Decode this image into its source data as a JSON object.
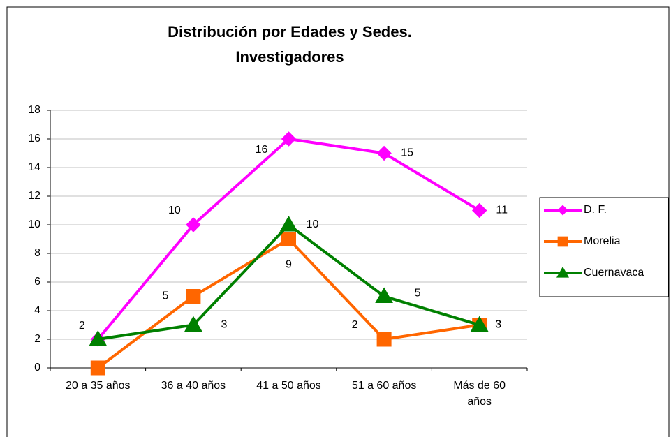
{
  "chart_data": {
    "type": "line",
    "title": [
      "Distribución por Edades y Sedes.",
      "Investigadores"
    ],
    "categories": [
      "20 a 35 años",
      "36 a 40 años",
      "41 a 50 años",
      "51 a 60 años",
      "Más de 60 años"
    ],
    "series": [
      {
        "name": "D. F.",
        "color": "#ff00ff",
        "marker": "diamond",
        "values": [
          2,
          10,
          16,
          15,
          11
        ]
      },
      {
        "name": "Morelia",
        "color": "#ff6600",
        "marker": "square",
        "values": [
          0,
          5,
          9,
          2,
          3
        ]
      },
      {
        "name": "Cuernavaca",
        "color": "#008000",
        "marker": "triangle",
        "values": [
          2,
          3,
          10,
          5,
          3
        ]
      }
    ],
    "ylim": [
      0,
      18
    ],
    "yticks": [
      0,
      2,
      4,
      6,
      8,
      10,
      12,
      14,
      16,
      18
    ],
    "grid": true,
    "legend": "right"
  }
}
